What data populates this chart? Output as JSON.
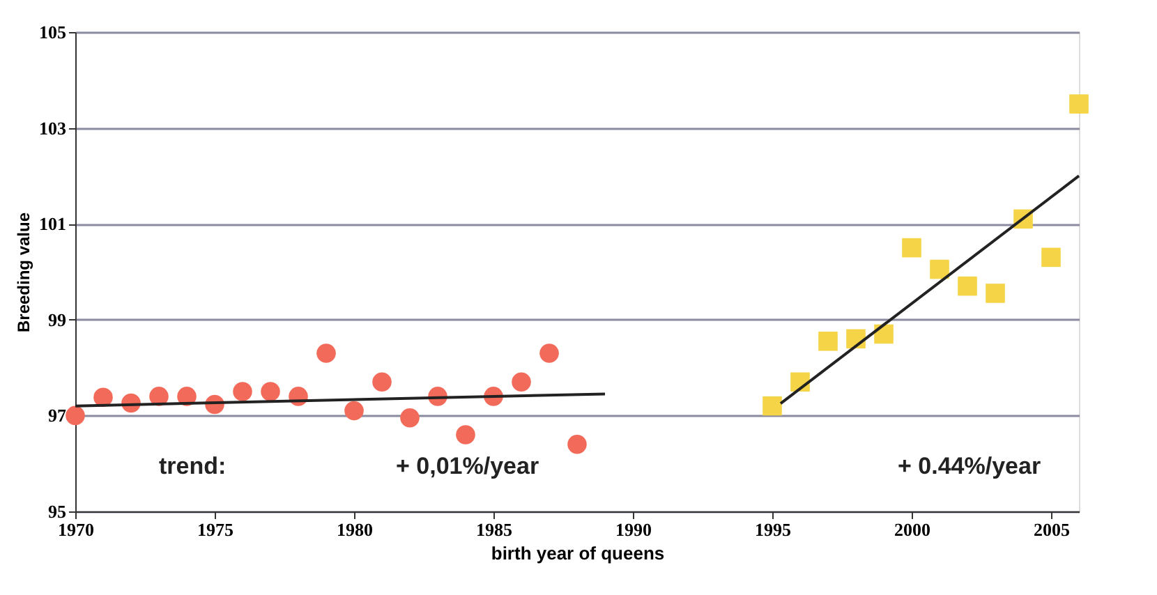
{
  "chart_data": {
    "type": "scatter",
    "xlabel": "birth year of  queens",
    "ylabel": "Breeding value",
    "xlim": [
      1970,
      2006
    ],
    "xticks": [
      1970,
      1975,
      1980,
      1985,
      1990,
      1995,
      2000,
      2005
    ],
    "ylim": [
      95,
      105
    ],
    "yticks": [
      95,
      97,
      99,
      101,
      103,
      105
    ],
    "grid": "y",
    "series": [
      {
        "marker": "circle",
        "color": "#f26a5a",
        "x": [
          1970,
          1971,
          1972,
          1973,
          1974,
          1975,
          1976,
          1977,
          1978,
          1979,
          1980,
          1981,
          1982,
          1983,
          1984,
          1985,
          1986,
          1987,
          1988
        ],
        "values": [
          97.0,
          97.38,
          97.26,
          97.4,
          97.4,
          97.23,
          97.5,
          97.5,
          97.4,
          98.3,
          97.1,
          97.7,
          96.95,
          97.4,
          96.6,
          97.4,
          97.7,
          98.3,
          96.4
        ]
      },
      {
        "marker": "square",
        "color": "#f5d547",
        "x": [
          1995,
          1996,
          1997,
          1998,
          1999,
          2000,
          2001,
          2002,
          2003,
          2004,
          2005,
          2006
        ],
        "values": [
          97.2,
          97.7,
          98.55,
          98.6,
          98.7,
          100.5,
          100.05,
          99.7,
          99.55,
          101.1,
          100.3,
          103.5
        ]
      },
      {
        "type": "line",
        "color": "#222222",
        "x": [
          1970,
          1989
        ],
        "values": [
          97.2,
          97.45
        ]
      },
      {
        "type": "line",
        "color": "#222222",
        "x": [
          1995.3,
          2006
        ],
        "values": [
          97.25,
          102.0
        ]
      }
    ],
    "annotations": [
      "trend:",
      "+ 0,01%/year",
      "+ 0.44%/year"
    ]
  }
}
